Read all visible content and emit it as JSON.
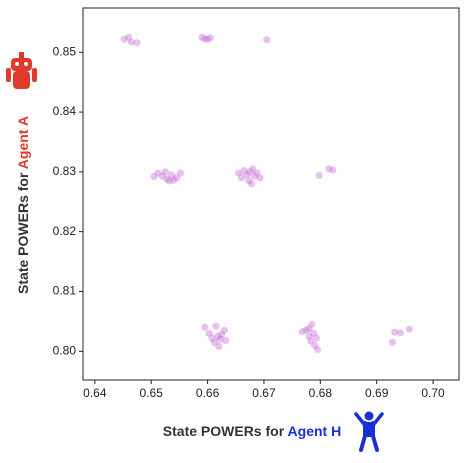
{
  "chart_data": {
    "type": "scatter",
    "xlabel": {
      "text": "State POWERs for ",
      "agent": "Agent H"
    },
    "ylabel": {
      "text": "State POWERs for ",
      "agent": "Agent A"
    },
    "color": "#c266d6",
    "xlim": [
      0.6379,
      0.7046
    ],
    "ylim": [
      0.7952,
      0.8574
    ],
    "xticks": [
      0.64,
      0.65,
      0.66,
      0.67,
      0.68,
      0.69,
      {
        "value": 0.7,
        "label": "0.70"
      }
    ],
    "yticks": [
      {
        "value": 0.8,
        "label": "0.80"
      },
      0.81,
      0.82,
      0.83,
      0.84,
      0.85
    ],
    "x": [
      0.6452,
      0.646,
      0.6465,
      0.6475,
      0.659,
      0.6595,
      0.66,
      0.6605,
      0.6705,
      0.6505,
      0.6512,
      0.652,
      0.6525,
      0.6528,
      0.6532,
      0.6536,
      0.654,
      0.6545,
      0.6552,
      0.6655,
      0.666,
      0.6665,
      0.667,
      0.6673,
      0.6675,
      0.6678,
      0.668,
      0.6683,
      0.6688,
      0.6693,
      0.6798,
      0.6815,
      0.6822,
      0.6595,
      0.6603,
      0.6608,
      0.6612,
      0.6615,
      0.6618,
      0.662,
      0.6625,
      0.663,
      0.6632,
      0.6622,
      0.6768,
      0.6775,
      0.678,
      0.6783,
      0.6785,
      0.6788,
      0.679,
      0.6793,
      0.6795,
      0.678,
      0.6928,
      0.6932,
      0.6942,
      0.6958
    ],
    "y": [
      0.8522,
      0.8525,
      0.8517,
      0.8516,
      0.8525,
      0.8522,
      0.8522,
      0.8524,
      0.8521,
      0.8292,
      0.8298,
      0.8293,
      0.83,
      0.8288,
      0.8285,
      0.8295,
      0.8286,
      0.829,
      0.8298,
      0.8298,
      0.829,
      0.8302,
      0.8295,
      0.8285,
      0.83,
      0.828,
      0.8305,
      0.8293,
      0.8298,
      0.829,
      0.8294,
      0.8305,
      0.8303,
      0.804,
      0.803,
      0.8022,
      0.8015,
      0.8042,
      0.8025,
      0.8008,
      0.8028,
      0.8035,
      0.8018,
      0.802,
      0.8033,
      0.8035,
      0.8025,
      0.8017,
      0.8045,
      0.803,
      0.801,
      0.8022,
      0.8003,
      0.8038,
      0.8015,
      0.8032,
      0.8031,
      0.8037
    ]
  }
}
